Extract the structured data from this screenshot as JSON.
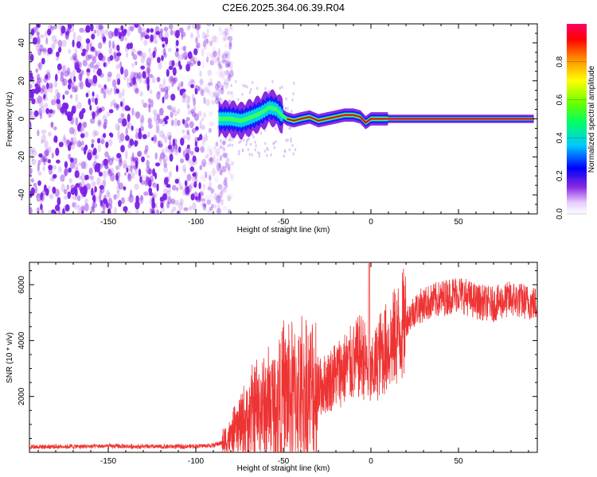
{
  "title": "C2E6.2025.364.06.39.R04",
  "colors": {
    "snr_line": "#ee3333",
    "spectrum_noise": "#8a2be2",
    "axis": "#000000"
  },
  "chart_data": [
    {
      "type": "heatmap",
      "name": "spectrogram",
      "xlabel": "Height of straight line (km)",
      "ylabel": "Frequency (Hz)",
      "xlim": [
        -195,
        95
      ],
      "ylim": [
        -50,
        50
      ],
      "x_ticks": [
        -150,
        -100,
        -50,
        0,
        50
      ],
      "y_ticks": [
        -40,
        -20,
        0,
        20,
        40
      ],
      "signal_track": {
        "x": [
          -87,
          -80,
          -74,
          -68,
          -63,
          -58,
          -54,
          -51,
          -48,
          -44,
          -40,
          -35,
          -30,
          -25,
          -20,
          -15,
          -10,
          -6,
          -3,
          0,
          5,
          10,
          20,
          40,
          60,
          80,
          93
        ],
        "y": [
          0,
          0,
          -1,
          1,
          3,
          6,
          5,
          2,
          0,
          -1,
          0,
          1,
          -1,
          0,
          1,
          2,
          2,
          1,
          -2,
          0,
          0,
          0,
          0,
          0,
          0,
          0,
          0
        ]
      },
      "noise_region_x": [
        -195,
        -87
      ],
      "colorbar": {
        "label": "Normalized spectral amplitude",
        "range": [
          0.0,
          1.0
        ],
        "ticks": [
          "0.0",
          "0.2",
          "0.4",
          "0.6",
          "0.8"
        ]
      }
    },
    {
      "type": "line",
      "name": "snr",
      "xlabel": "Height of straight line (km)",
      "ylabel": "SNR (10 * v/v)",
      "xlim": [
        -195,
        95
      ],
      "ylim": [
        0,
        6800
      ],
      "x_ticks": [
        -150,
        -100,
        -50,
        0,
        50
      ],
      "y_ticks": [
        2000,
        4000,
        6000
      ],
      "envelope": {
        "x": [
          -195,
          -150,
          -120,
          -100,
          -90,
          -85,
          -80,
          -75,
          -70,
          -65,
          -60,
          -55,
          -50,
          -45,
          -40,
          -35,
          -30,
          -25,
          -20,
          -15,
          -10,
          -5,
          0,
          5,
          10,
          15,
          20,
          25,
          30,
          40,
          50,
          60,
          70,
          80,
          95
        ],
        "y": [
          200,
          220,
          200,
          220,
          250,
          350,
          550,
          900,
          1200,
          1500,
          1600,
          1700,
          2100,
          2100,
          2200,
          2100,
          2300,
          2500,
          2800,
          3000,
          3200,
          3500,
          2700,
          3500,
          3800,
          4200,
          4700,
          5100,
          5300,
          5500,
          5700,
          5400,
          5300,
          5500,
          5300
        ]
      },
      "spike": {
        "x": -1,
        "y": 6800
      }
    }
  ]
}
